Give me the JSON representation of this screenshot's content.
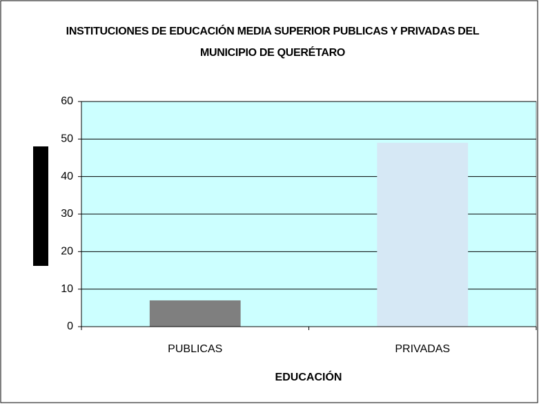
{
  "chart_data": {
    "type": "bar",
    "title": "INSTITUCIONES DE EDUCACIÓN MEDIA SUPERIOR PUBLICAS Y PRIVADAS DEL MUNICIPIO DE QUERÉTARO",
    "x_label": "EDUCACIÓN",
    "categories": [
      "PUBLICAS",
      "PRIVADAS"
    ],
    "values": [
      7,
      49
    ],
    "colors": [
      "#7f7f7f",
      "#d6e8f5"
    ],
    "ylim": [
      0,
      60
    ],
    "yticks": [
      0,
      10,
      20,
      30,
      40,
      50,
      60
    ],
    "grid": true
  }
}
